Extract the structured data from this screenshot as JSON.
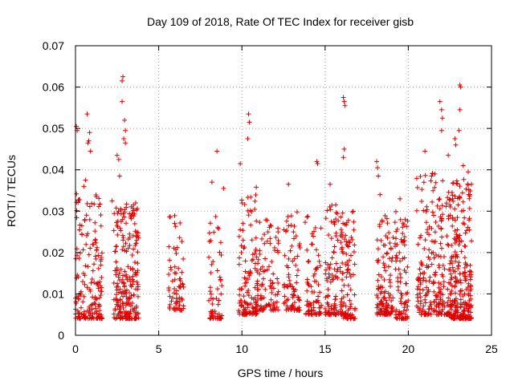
{
  "chart_data": {
    "type": "scatter",
    "title": "Day 109 of 2018, Rate Of TEC Index for receiver gisb",
    "xlabel": "GPS time / hours",
    "ylabel": "ROTI / TECUs",
    "xlim": [
      0,
      25
    ],
    "ylim": [
      0,
      0.07
    ],
    "xticks": [
      0,
      5,
      10,
      15,
      20,
      25
    ],
    "yticks": [
      0,
      0.01,
      0.02,
      0.03,
      0.04,
      0.05,
      0.06,
      0.07
    ],
    "ytick_labels": [
      "0",
      "0.01",
      "0.02",
      "0.03",
      "0.04",
      "0.05",
      "0.06",
      "0.07"
    ],
    "xtick_labels": [
      "0",
      "5",
      "10",
      "15",
      "20",
      "25"
    ],
    "grid": true,
    "marker": "plus",
    "color": "#e00000",
    "clusters": [
      {
        "x_range": [
          0.0,
          1.6
        ],
        "y_range": [
          0.004,
          0.035
        ],
        "count": 170
      },
      {
        "x_range": [
          2.3,
          3.8
        ],
        "y_range": [
          0.004,
          0.032
        ],
        "count": 230
      },
      {
        "x_range": [
          5.6,
          6.5
        ],
        "y_range": [
          0.006,
          0.03
        ],
        "count": 70
      },
      {
        "x_range": [
          8.0,
          8.8
        ],
        "y_range": [
          0.004,
          0.03
        ],
        "count": 60
      },
      {
        "x_range": [
          9.8,
          11.0
        ],
        "y_range": [
          0.005,
          0.036
        ],
        "count": 130
      },
      {
        "x_range": [
          11.0,
          12.2
        ],
        "y_range": [
          0.006,
          0.028
        ],
        "count": 90
      },
      {
        "x_range": [
          12.5,
          13.5
        ],
        "y_range": [
          0.006,
          0.03
        ],
        "count": 80
      },
      {
        "x_range": [
          13.8,
          14.8
        ],
        "y_range": [
          0.005,
          0.03
        ],
        "count": 80
      },
      {
        "x_range": [
          15.0,
          15.8
        ],
        "y_range": [
          0.005,
          0.032
        ],
        "count": 90
      },
      {
        "x_range": [
          15.9,
          16.8
        ],
        "y_range": [
          0.004,
          0.03
        ],
        "count": 110
      },
      {
        "x_range": [
          18.1,
          19.1
        ],
        "y_range": [
          0.005,
          0.03
        ],
        "count": 120
      },
      {
        "x_range": [
          19.2,
          20.0
        ],
        "y_range": [
          0.004,
          0.03
        ],
        "count": 90
      },
      {
        "x_range": [
          20.5,
          22.5
        ],
        "y_range": [
          0.005,
          0.04
        ],
        "count": 230
      },
      {
        "x_range": [
          22.5,
          23.8
        ],
        "y_range": [
          0.004,
          0.038
        ],
        "count": 260
      }
    ],
    "outliers": [
      [
        0.05,
        0.0505
      ],
      [
        0.1,
        0.0495
      ],
      [
        0.7,
        0.0535
      ],
      [
        0.75,
        0.0465
      ],
      [
        0.8,
        0.047
      ],
      [
        0.85,
        0.049
      ],
      [
        0.9,
        0.0445
      ],
      [
        0.6,
        0.0375
      ],
      [
        0.5,
        0.036
      ],
      [
        2.2,
        0.0325
      ],
      [
        2.5,
        0.0435
      ],
      [
        2.6,
        0.0425
      ],
      [
        2.85,
        0.0625
      ],
      [
        2.8,
        0.0615
      ],
      [
        2.8,
        0.0565
      ],
      [
        2.95,
        0.052
      ],
      [
        3.0,
        0.0495
      ],
      [
        2.9,
        0.0475
      ],
      [
        3.0,
        0.0465
      ],
      [
        2.65,
        0.0385
      ],
      [
        8.5,
        0.0445
      ],
      [
        8.2,
        0.037
      ],
      [
        8.9,
        0.0355
      ],
      [
        9.9,
        0.0415
      ],
      [
        10.4,
        0.0535
      ],
      [
        10.45,
        0.0515
      ],
      [
        10.35,
        0.0475
      ],
      [
        12.8,
        0.0365
      ],
      [
        14.5,
        0.042
      ],
      [
        14.55,
        0.0415
      ],
      [
        15.3,
        0.0365
      ],
      [
        16.1,
        0.0575
      ],
      [
        16.15,
        0.0565
      ],
      [
        16.2,
        0.0555
      ],
      [
        16.15,
        0.045
      ],
      [
        16.1,
        0.043
      ],
      [
        18.1,
        0.042
      ],
      [
        18.15,
        0.0405
      ],
      [
        18.2,
        0.0385
      ],
      [
        18.3,
        0.034
      ],
      [
        19.5,
        0.033
      ],
      [
        21.0,
        0.0445
      ],
      [
        21.4,
        0.0385
      ],
      [
        21.6,
        0.039
      ],
      [
        21.9,
        0.0565
      ],
      [
        22.0,
        0.0545
      ],
      [
        22.05,
        0.0525
      ],
      [
        22.0,
        0.0495
      ],
      [
        22.4,
        0.0435
      ],
      [
        22.8,
        0.0475
      ],
      [
        22.85,
        0.046
      ],
      [
        23.1,
        0.0605
      ],
      [
        23.15,
        0.06
      ],
      [
        23.1,
        0.0545
      ],
      [
        23.05,
        0.0495
      ],
      [
        23.3,
        0.041
      ],
      [
        23.6,
        0.0395
      ],
      [
        23.7,
        0.034
      ]
    ]
  }
}
